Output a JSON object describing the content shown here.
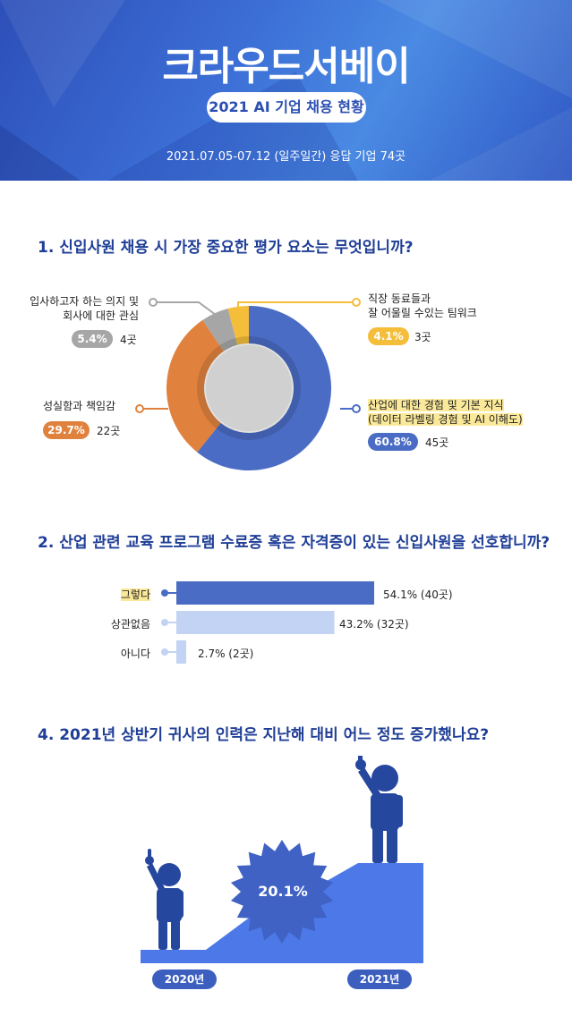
{
  "header": {
    "brand": "크라우드서베이",
    "subtitle": "2021 AI 기업 채용 현황",
    "period": "2021.07.05-07.12  (일주일간)  응답 기업 74곳"
  },
  "q1": {
    "title": "1. 신입사원 채용 시 가장 중요한 평가 요소는 무엇입니까?"
  },
  "q2": {
    "title": "2. 산업 관련 교육 프로그램 수료증 혹은 자격증이 있는 신입사원을 선호합니까?"
  },
  "q4": {
    "title": "4. 2021년 상반기 귀사의 인력은 지난해 대비 어느 정도 증가했나요?"
  },
  "chart_data": [
    {
      "type": "pie",
      "title": "1. 신입사원 채용 시 가장 중요한 평가 요소는 무엇입니까?",
      "slices": [
        {
          "label_line1": "산업에 대한 경험 및 기본 지식",
          "label_line2": "(데이터 라벨링 경험 및 AI 이해도)",
          "percent": 60.8,
          "percent_text": "60.8%",
          "count_text": "45곳",
          "color": "#4a6cc4"
        },
        {
          "label_line1": "성실함과 책임감",
          "label_line2": "",
          "percent": 29.7,
          "percent_text": "29.7%",
          "count_text": "22곳",
          "color": "#e0823e"
        },
        {
          "label_line1": "입사하고자 하는 의지 및",
          "label_line2": "회사에 대한 관심",
          "percent": 5.4,
          "percent_text": "5.4%",
          "count_text": "4곳",
          "color": "#a6a6a6"
        },
        {
          "label_line1": "직장 동료들과",
          "label_line2": "잘 어울릴 수있는 팀워크",
          "percent": 4.1,
          "percent_text": "4.1%",
          "count_text": "3곳",
          "color": "#f4bd3a"
        }
      ]
    },
    {
      "type": "bar",
      "title": "2. 산업 관련 교육 프로그램 수료증 혹은 자격증이 있는 신입사원을 선호합니까?",
      "categories": [
        "그렇다",
        "상관없음",
        "아니다"
      ],
      "values": [
        54.1,
        43.2,
        2.7
      ],
      "value_labels": [
        "54.1% (40곳)",
        "43.2% (32곳)",
        "2.7% (2곳)"
      ],
      "colors": [
        "#4a6cc4",
        "#c2d3f3",
        "#c2d3f3"
      ]
    },
    {
      "type": "bar",
      "title": "4. 2021년 상반기 귀사의 인력은 지난해 대비 어느 정도 증가했나요?",
      "categories": [
        "2020년",
        "2021년"
      ],
      "increase": 20.1,
      "increase_text": "20.1%",
      "colors": {
        "platform": "#4d79e8",
        "person": "#25479e",
        "burst": "#3f62c4"
      }
    }
  ]
}
